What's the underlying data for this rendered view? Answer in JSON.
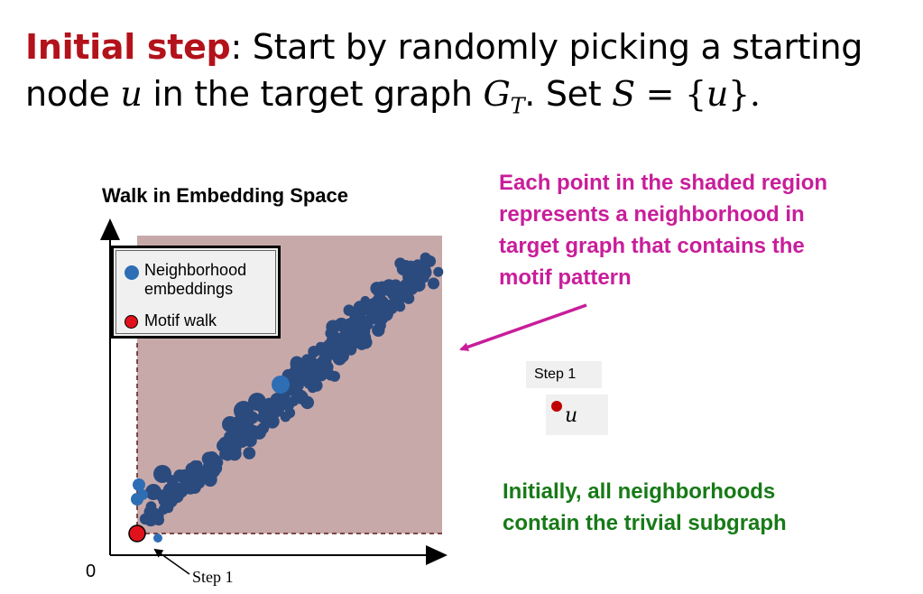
{
  "slide": {
    "title_highlight": "Initial step",
    "title_line1_rest": ": Start by randomly picking a starting",
    "title_line2_a": "node ",
    "title_var_u": "u",
    "title_line2_b": " in the target graph ",
    "title_var_G": "G",
    "title_var_T": "T",
    "title_line2_c": ". Set ",
    "title_var_S": "S",
    "title_eq": " = {",
    "title_var_u2": "u",
    "title_end": "}."
  },
  "diagram": {
    "title": "Walk in Embedding Space",
    "origin_label": "0",
    "step_caption": "Step 1",
    "legend": {
      "neighborhood_label_1": "Neighborhood",
      "neighborhood_label_2": "embeddings",
      "motif_label": "Motif walk"
    },
    "colors": {
      "shaded_region": "#c8a9a9",
      "neighborhood_point": "#2b4b7e",
      "highlight_point": "#2e6eb5",
      "motif_point": "#e0121b",
      "arrow": "#c81e9a"
    }
  },
  "annotations": {
    "magenta_note": [
      "Each point in the shaded region",
      "represents a neighborhood in",
      "target graph that contains the",
      "motif pattern"
    ],
    "green_note": [
      "Initially, all neighborhoods",
      "contain the trivial subgraph"
    ]
  },
  "step_panel": {
    "label": "Step 1",
    "node": "u"
  }
}
